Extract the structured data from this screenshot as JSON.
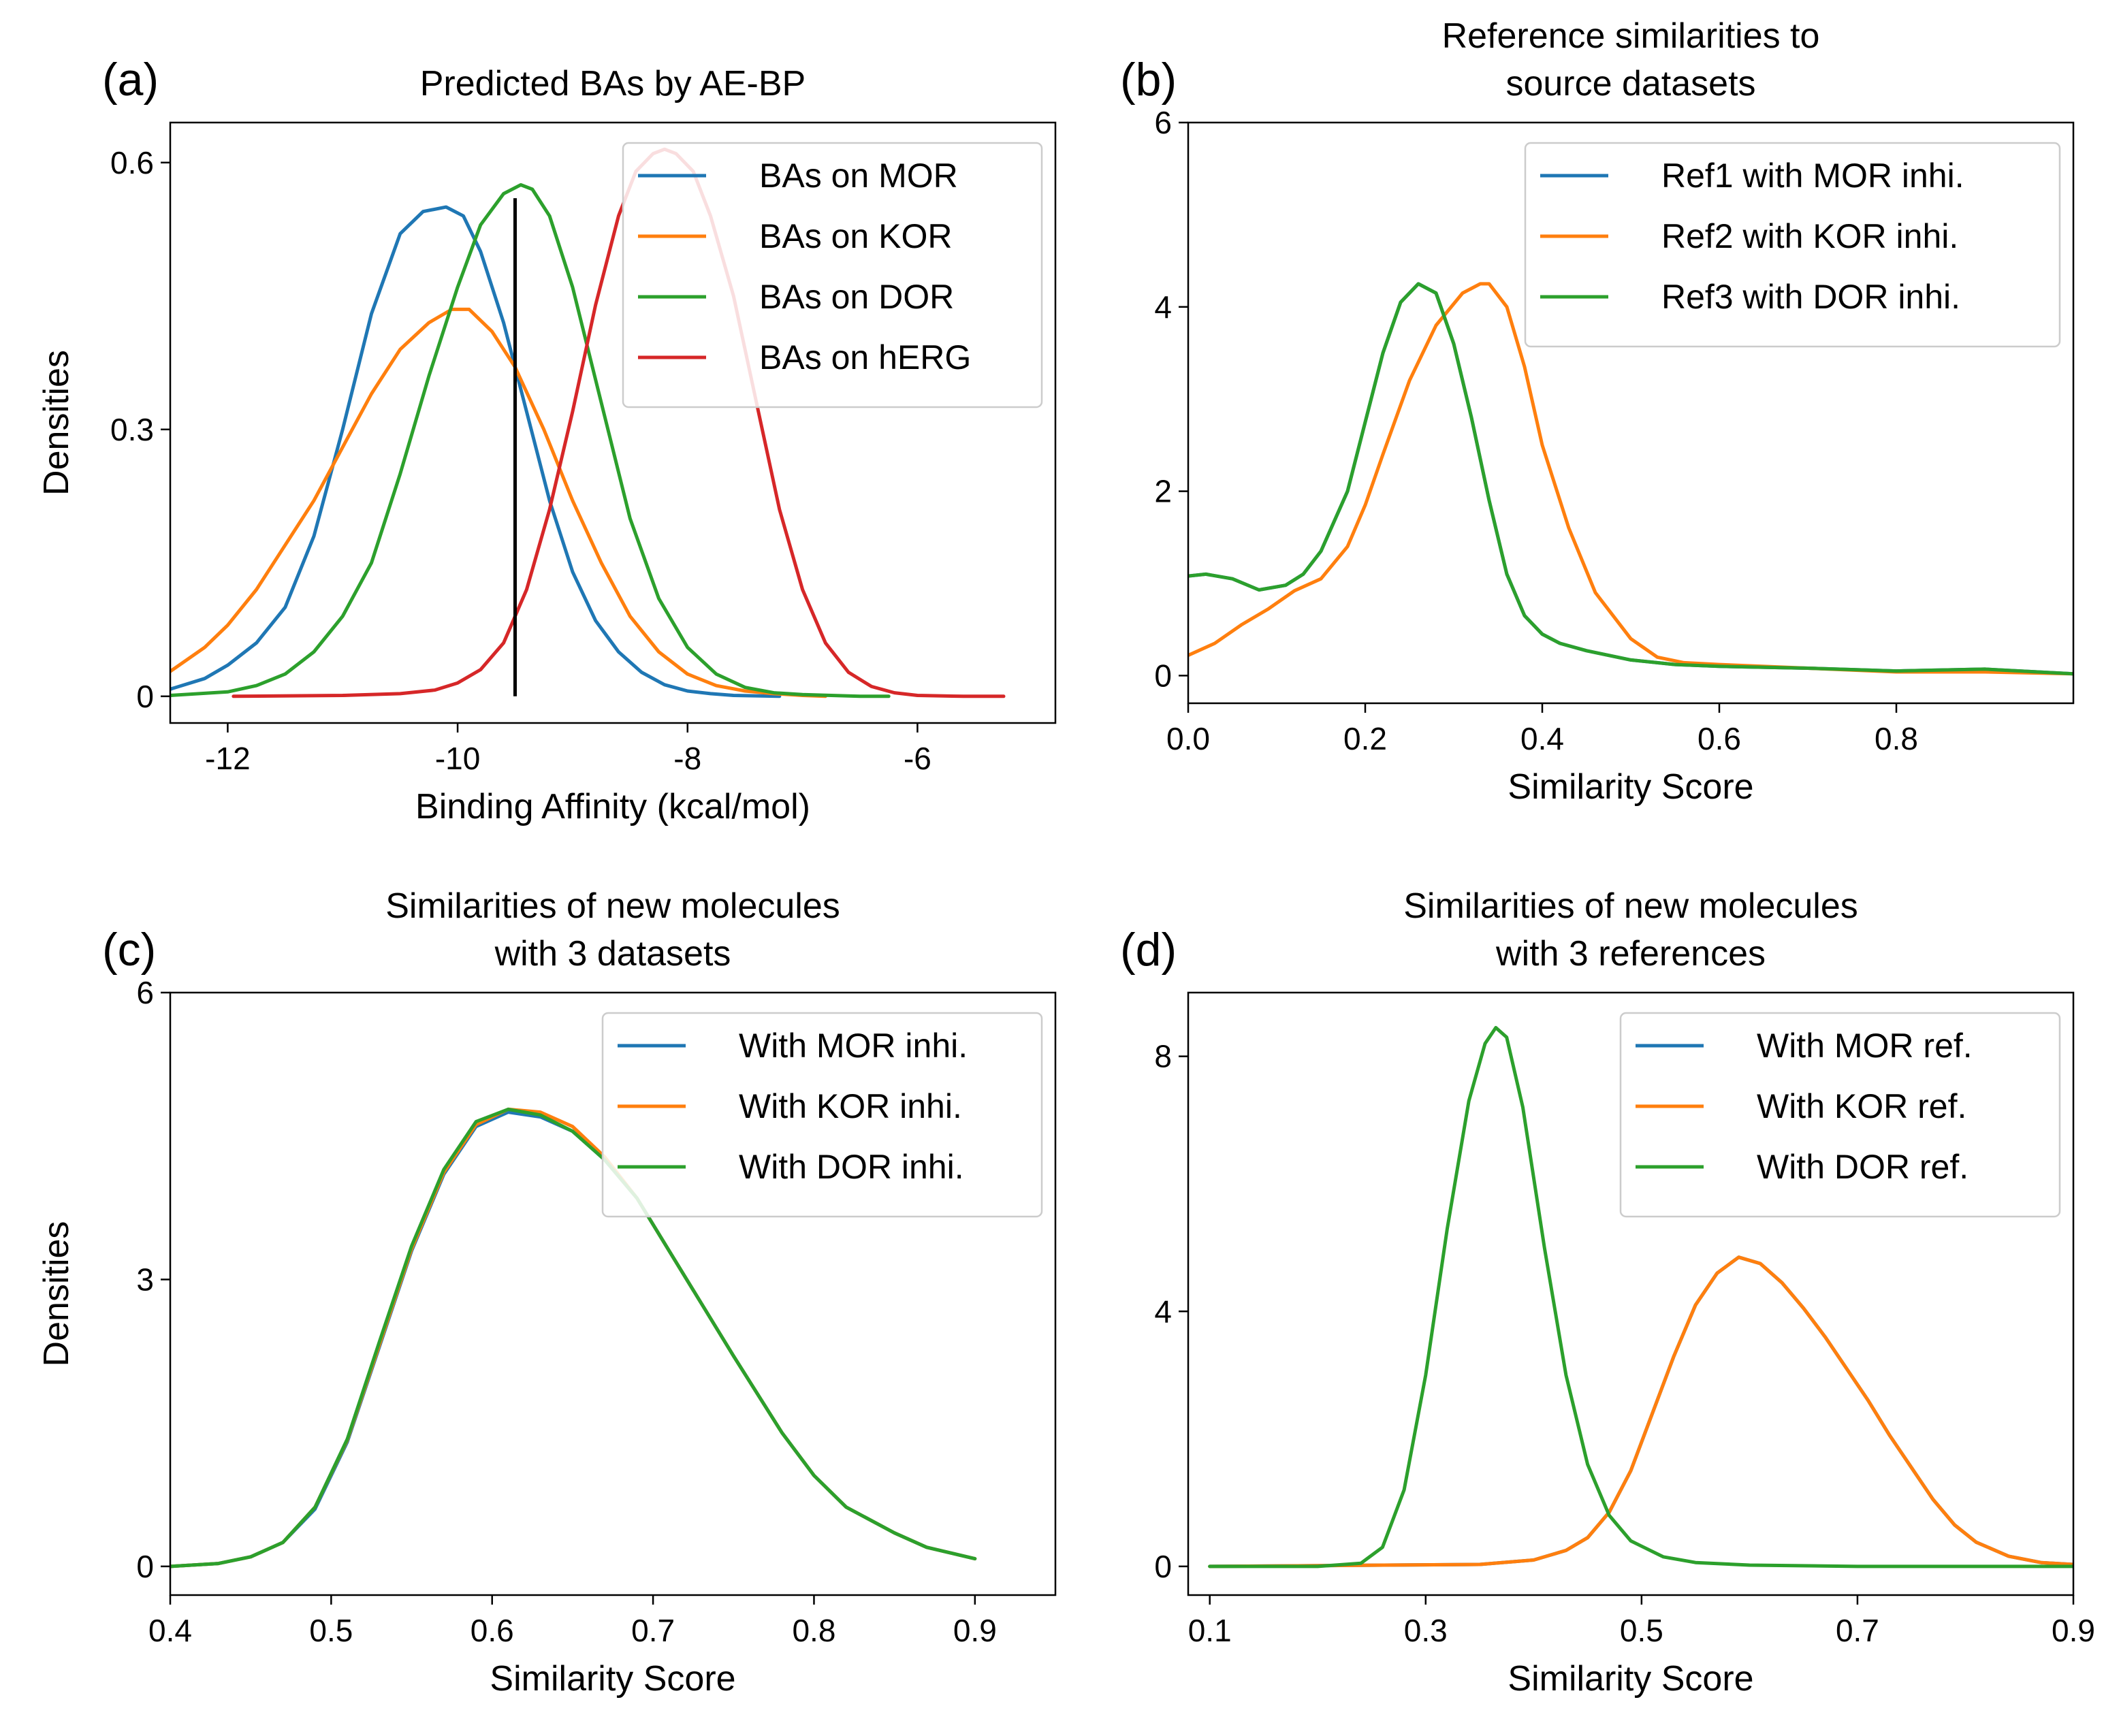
{
  "colors": {
    "MOR": "#1f77b4",
    "KOR": "#ff7f0e",
    "DOR": "#2ca02c",
    "hERG": "#d62728",
    "marker": "#000000"
  },
  "chart_data": [
    {
      "id": "a",
      "type": "line",
      "panel_label": "(a)",
      "title_lines": [
        "Predicted BAs by AE-BP"
      ],
      "xlabel": "Binding Affinity (kcal/mol)",
      "ylabel": "Densities",
      "xlim": [
        -12.5,
        -4.8
      ],
      "ylim": [
        -0.03,
        0.645
      ],
      "xticks": [
        -12,
        -10,
        -8,
        -6
      ],
      "xtick_labels": [
        "-12",
        "-10",
        "-8",
        "-6"
      ],
      "yticks": [
        0,
        0.3,
        0.6
      ],
      "ytick_labels": [
        "0",
        "0.3",
        "0.6"
      ],
      "legend": {
        "position": "top-right",
        "entries": [
          "BAs on MOR",
          "BAs on KOR",
          "BAs on DOR",
          "BAs on hERG"
        ]
      },
      "vline": {
        "x": -9.5,
        "y_from": 0,
        "y_to": 0.56
      },
      "series": [
        {
          "name": "BAs on MOR",
          "color_key": "MOR",
          "x": [
            -12.5,
            -12.2,
            -12.0,
            -11.75,
            -11.5,
            -11.25,
            -11.0,
            -10.75,
            -10.5,
            -10.3,
            -10.1,
            -9.95,
            -9.8,
            -9.6,
            -9.4,
            -9.2,
            -9.0,
            -8.8,
            -8.6,
            -8.4,
            -8.2,
            -8.0,
            -7.8,
            -7.6,
            -7.4,
            -7.2
          ],
          "y": [
            0.008,
            0.02,
            0.035,
            0.06,
            0.1,
            0.18,
            0.3,
            0.43,
            0.52,
            0.545,
            0.55,
            0.54,
            0.5,
            0.42,
            0.32,
            0.22,
            0.14,
            0.085,
            0.05,
            0.027,
            0.013,
            0.006,
            0.003,
            0.001,
            0.0005,
            0.0
          ]
        },
        {
          "name": "BAs on KOR",
          "color_key": "KOR",
          "x": [
            -12.5,
            -12.2,
            -12.0,
            -11.75,
            -11.5,
            -11.25,
            -11.0,
            -10.75,
            -10.5,
            -10.25,
            -10.05,
            -9.9,
            -9.7,
            -9.5,
            -9.25,
            -9.0,
            -8.75,
            -8.5,
            -8.25,
            -8.0,
            -7.75,
            -7.5,
            -7.25,
            -7.0,
            -6.8
          ],
          "y": [
            0.028,
            0.055,
            0.08,
            0.12,
            0.17,
            0.22,
            0.28,
            0.34,
            0.39,
            0.42,
            0.435,
            0.435,
            0.41,
            0.37,
            0.3,
            0.22,
            0.15,
            0.09,
            0.05,
            0.025,
            0.012,
            0.006,
            0.003,
            0.001,
            0.0
          ]
        },
        {
          "name": "BAs on DOR",
          "color_key": "DOR",
          "x": [
            -12.5,
            -12.0,
            -11.75,
            -11.5,
            -11.25,
            -11.0,
            -10.75,
            -10.5,
            -10.25,
            -10.0,
            -9.8,
            -9.6,
            -9.45,
            -9.35,
            -9.2,
            -9.0,
            -8.75,
            -8.5,
            -8.25,
            -8.0,
            -7.75,
            -7.5,
            -7.25,
            -7.0,
            -6.75,
            -6.5,
            -6.25
          ],
          "y": [
            0.001,
            0.005,
            0.012,
            0.025,
            0.05,
            0.09,
            0.15,
            0.25,
            0.36,
            0.46,
            0.53,
            0.565,
            0.575,
            0.57,
            0.54,
            0.46,
            0.33,
            0.2,
            0.11,
            0.055,
            0.025,
            0.01,
            0.004,
            0.002,
            0.001,
            0.0,
            0.0
          ]
        },
        {
          "name": "BAs on hERG",
          "color_key": "hERG",
          "x": [
            -11.95,
            -11.0,
            -10.5,
            -10.2,
            -10.0,
            -9.8,
            -9.6,
            -9.4,
            -9.2,
            -9.0,
            -8.8,
            -8.6,
            -8.45,
            -8.3,
            -8.2,
            -8.1,
            -7.95,
            -7.8,
            -7.6,
            -7.4,
            -7.2,
            -7.0,
            -6.8,
            -6.6,
            -6.4,
            -6.2,
            -6.0,
            -5.6,
            -5.25
          ],
          "y": [
            0.0,
            0.001,
            0.003,
            0.007,
            0.015,
            0.03,
            0.06,
            0.12,
            0.21,
            0.32,
            0.44,
            0.54,
            0.59,
            0.61,
            0.615,
            0.61,
            0.59,
            0.54,
            0.45,
            0.33,
            0.21,
            0.12,
            0.06,
            0.027,
            0.011,
            0.004,
            0.001,
            0.0,
            0.0
          ]
        }
      ]
    },
    {
      "id": "b",
      "type": "line",
      "panel_label": "(b)",
      "title_lines": [
        "Reference similarities to",
        "source datasets"
      ],
      "xlabel": "Similarity Score",
      "ylabel": "",
      "xlim": [
        0.0,
        1.0
      ],
      "ylim": [
        -0.3,
        6.0
      ],
      "xticks": [
        0.0,
        0.2,
        0.4,
        0.6,
        0.8
      ],
      "xtick_labels": [
        "0.0",
        "0.2",
        "0.4",
        "0.6",
        "0.8"
      ],
      "yticks": [
        0,
        2,
        4,
        6
      ],
      "ytick_labels": [
        "0",
        "2",
        "4",
        "6"
      ],
      "legend": {
        "position": "top-right",
        "entries": [
          "Ref1 with MOR inhi.",
          "Ref2 with KOR inhi.",
          "Ref3 with DOR inhi."
        ]
      },
      "series": [
        {
          "name": "Ref1 with MOR inhi.",
          "color_key": "MOR",
          "x": [
            0.0,
            0.02,
            0.05,
            0.08,
            0.11,
            0.13,
            0.15,
            0.18,
            0.2,
            0.22,
            0.24,
            0.26,
            0.28,
            0.3,
            0.32,
            0.34,
            0.36,
            0.38,
            0.4,
            0.42,
            0.45,
            0.5,
            0.55,
            0.6,
            0.7,
            0.8,
            0.9,
            1.0
          ],
          "y": [
            1.08,
            1.1,
            1.05,
            0.93,
            0.98,
            1.1,
            1.35,
            2.0,
            2.75,
            3.5,
            4.05,
            4.25,
            4.15,
            3.6,
            2.8,
            1.9,
            1.1,
            0.65,
            0.45,
            0.35,
            0.27,
            0.17,
            0.12,
            0.1,
            0.08,
            0.05,
            0.07,
            0.02
          ]
        },
        {
          "name": "Ref2 with KOR inhi.",
          "color_key": "KOR",
          "x": [
            0.0,
            0.03,
            0.06,
            0.09,
            0.12,
            0.15,
            0.18,
            0.2,
            0.22,
            0.25,
            0.28,
            0.31,
            0.33,
            0.34,
            0.36,
            0.38,
            0.4,
            0.43,
            0.46,
            0.5,
            0.53,
            0.56,
            0.6,
            0.7,
            0.8,
            0.9,
            1.0
          ],
          "y": [
            0.22,
            0.35,
            0.55,
            0.72,
            0.92,
            1.05,
            1.4,
            1.85,
            2.4,
            3.2,
            3.8,
            4.15,
            4.25,
            4.25,
            4.0,
            3.35,
            2.5,
            1.6,
            0.9,
            0.4,
            0.2,
            0.14,
            0.12,
            0.08,
            0.04,
            0.04,
            0.02
          ]
        },
        {
          "name": "Ref3 with DOR inhi.",
          "color_key": "DOR",
          "x": [
            0.0,
            0.02,
            0.05,
            0.08,
            0.11,
            0.13,
            0.15,
            0.18,
            0.2,
            0.22,
            0.24,
            0.26,
            0.28,
            0.3,
            0.32,
            0.34,
            0.36,
            0.38,
            0.4,
            0.42,
            0.45,
            0.5,
            0.55,
            0.6,
            0.7,
            0.8,
            0.9,
            1.0
          ],
          "y": [
            1.08,
            1.1,
            1.05,
            0.93,
            0.98,
            1.1,
            1.35,
            2.0,
            2.75,
            3.5,
            4.05,
            4.25,
            4.15,
            3.6,
            2.8,
            1.9,
            1.1,
            0.65,
            0.45,
            0.35,
            0.27,
            0.17,
            0.12,
            0.1,
            0.08,
            0.05,
            0.07,
            0.02
          ]
        }
      ]
    },
    {
      "id": "c",
      "type": "line",
      "panel_label": "(c)",
      "title_lines": [
        "Similarities of new molecules",
        "with 3 datasets"
      ],
      "xlabel": "Similarity Score",
      "ylabel": "Densities",
      "xlim": [
        0.4,
        0.95
      ],
      "ylim": [
        -0.3,
        6.0
      ],
      "xticks": [
        0.4,
        0.5,
        0.6,
        0.7,
        0.8,
        0.9
      ],
      "xtick_labels": [
        "0.4",
        "0.5",
        "0.6",
        "0.7",
        "0.8",
        "0.9"
      ],
      "yticks": [
        0,
        3,
        6
      ],
      "ytick_labels": [
        "0",
        "3",
        "6"
      ],
      "legend": {
        "position": "top-right",
        "entries": [
          "With MOR inhi.",
          "With KOR inhi.",
          "With DOR inhi."
        ]
      },
      "series": [
        {
          "name": "With MOR inhi.",
          "color_key": "MOR",
          "x": [
            0.4,
            0.43,
            0.45,
            0.47,
            0.49,
            0.51,
            0.53,
            0.55,
            0.57,
            0.59,
            0.61,
            0.63,
            0.65,
            0.67,
            0.69,
            0.71,
            0.73,
            0.75,
            0.78,
            0.8,
            0.82,
            0.85,
            0.87,
            0.9
          ],
          "y": [
            0.0,
            0.03,
            0.1,
            0.25,
            0.6,
            1.3,
            2.3,
            3.3,
            4.1,
            4.6,
            4.75,
            4.7,
            4.55,
            4.25,
            3.85,
            3.3,
            2.75,
            2.2,
            1.4,
            0.95,
            0.62,
            0.35,
            0.2,
            0.08
          ]
        },
        {
          "name": "With KOR inhi.",
          "color_key": "KOR",
          "x": [
            0.4,
            0.43,
            0.45,
            0.47,
            0.49,
            0.51,
            0.53,
            0.55,
            0.57,
            0.59,
            0.61,
            0.63,
            0.65,
            0.67,
            0.69,
            0.71,
            0.73,
            0.75,
            0.78,
            0.8,
            0.82,
            0.85,
            0.87,
            0.9
          ],
          "y": [
            0.0,
            0.03,
            0.1,
            0.25,
            0.62,
            1.32,
            2.32,
            3.32,
            4.12,
            4.62,
            4.78,
            4.75,
            4.6,
            4.28,
            3.85,
            3.3,
            2.75,
            2.2,
            1.4,
            0.95,
            0.62,
            0.35,
            0.2,
            0.08
          ]
        },
        {
          "name": "With DOR inhi.",
          "color_key": "DOR",
          "x": [
            0.4,
            0.43,
            0.45,
            0.47,
            0.49,
            0.51,
            0.53,
            0.55,
            0.57,
            0.59,
            0.61,
            0.63,
            0.65,
            0.67,
            0.69,
            0.71,
            0.73,
            0.75,
            0.78,
            0.8,
            0.82,
            0.85,
            0.87,
            0.9
          ],
          "y": [
            0.0,
            0.03,
            0.1,
            0.25,
            0.62,
            1.33,
            2.35,
            3.35,
            4.15,
            4.65,
            4.78,
            4.72,
            4.55,
            4.25,
            3.85,
            3.3,
            2.75,
            2.2,
            1.4,
            0.95,
            0.62,
            0.35,
            0.2,
            0.08
          ]
        }
      ]
    },
    {
      "id": "d",
      "type": "line",
      "panel_label": "(d)",
      "title_lines": [
        "Similarities of new molecules",
        "with 3 references"
      ],
      "xlabel": "Similarity Score",
      "ylabel": "",
      "xlim": [
        0.08,
        0.9
      ],
      "ylim": [
        -0.45,
        9.0
      ],
      "xticks": [
        0.1,
        0.3,
        0.5,
        0.7,
        0.9
      ],
      "xtick_labels": [
        "0.1",
        "0.3",
        "0.5",
        "0.7",
        "0.9"
      ],
      "yticks": [
        0,
        4,
        8
      ],
      "ytick_labels": [
        "0",
        "4",
        "8"
      ],
      "legend": {
        "position": "top-right",
        "entries": [
          "With MOR ref.",
          "With KOR ref.",
          "With DOR ref."
        ]
      },
      "series": [
        {
          "name": "With MOR ref.",
          "color_key": "MOR",
          "x": [
            0.1,
            0.35,
            0.4,
            0.43,
            0.45,
            0.47,
            0.49,
            0.51,
            0.53,
            0.55,
            0.57,
            0.59,
            0.61,
            0.63,
            0.65,
            0.67,
            0.69,
            0.71,
            0.73,
            0.75,
            0.77,
            0.79,
            0.81,
            0.84,
            0.87,
            0.9
          ],
          "y": [
            0.0,
            0.03,
            0.1,
            0.25,
            0.45,
            0.85,
            1.5,
            2.4,
            3.3,
            4.1,
            4.6,
            4.85,
            4.75,
            4.45,
            4.05,
            3.6,
            3.1,
            2.6,
            2.05,
            1.55,
            1.05,
            0.65,
            0.38,
            0.16,
            0.06,
            0.03
          ]
        },
        {
          "name": "With KOR ref.",
          "color_key": "KOR",
          "x": [
            0.1,
            0.35,
            0.4,
            0.43,
            0.45,
            0.47,
            0.49,
            0.51,
            0.53,
            0.55,
            0.57,
            0.59,
            0.61,
            0.63,
            0.65,
            0.67,
            0.69,
            0.71,
            0.73,
            0.75,
            0.77,
            0.79,
            0.81,
            0.84,
            0.87,
            0.9
          ],
          "y": [
            0.0,
            0.03,
            0.1,
            0.25,
            0.45,
            0.85,
            1.5,
            2.4,
            3.3,
            4.1,
            4.6,
            4.85,
            4.75,
            4.45,
            4.05,
            3.6,
            3.1,
            2.6,
            2.05,
            1.55,
            1.05,
            0.65,
            0.38,
            0.16,
            0.06,
            0.03
          ]
        },
        {
          "name": "With DOR ref.",
          "color_key": "DOR",
          "x": [
            0.1,
            0.2,
            0.24,
            0.26,
            0.28,
            0.3,
            0.32,
            0.34,
            0.355,
            0.365,
            0.375,
            0.39,
            0.41,
            0.43,
            0.45,
            0.47,
            0.49,
            0.52,
            0.55,
            0.6,
            0.7,
            0.8,
            0.9
          ],
          "y": [
            0.0,
            0.0,
            0.05,
            0.3,
            1.2,
            3.0,
            5.3,
            7.3,
            8.2,
            8.45,
            8.3,
            7.2,
            5.0,
            3.0,
            1.6,
            0.8,
            0.4,
            0.15,
            0.06,
            0.02,
            0.0,
            0.0,
            0.0
          ]
        }
      ]
    }
  ]
}
